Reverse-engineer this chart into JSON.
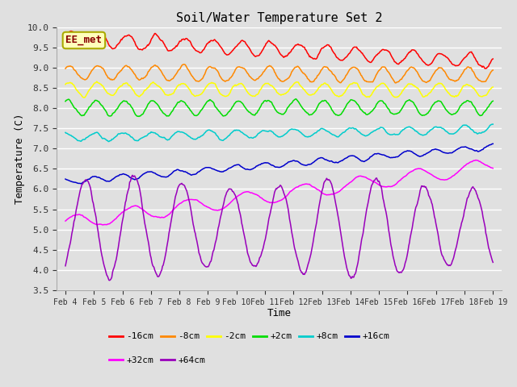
{
  "title": "Soil/Water Temperature Set 2",
  "xlabel": "Time",
  "ylabel": "Temperature (C)",
  "ylim": [
    3.5,
    10.0
  ],
  "bg_color": "#e0e0e0",
  "grid_color": "#ffffff",
  "annotation_text": "EE_met",
  "annotation_fg": "#880000",
  "annotation_bg": "#ffffbb",
  "annotation_border": "#aaaa00",
  "xtick_labels": [
    "Feb 4",
    "Feb 5",
    "Feb 6",
    "Feb 7",
    "Feb 8",
    "Feb 9",
    "Feb 10",
    "Feb 11",
    "Feb 12",
    "Feb 13",
    "Feb 14",
    "Feb 15",
    "Feb 16",
    "Feb 17",
    "Feb 18",
    "Feb 19"
  ],
  "ytick_values": [
    3.5,
    4.0,
    4.5,
    5.0,
    5.5,
    6.0,
    6.5,
    7.0,
    7.5,
    8.0,
    8.5,
    9.0,
    9.5,
    10.0
  ],
  "legend": [
    {
      "label": "-16cm",
      "color": "#ff0000"
    },
    {
      "label": "-8cm",
      "color": "#ff8800"
    },
    {
      "label": "-2cm",
      "color": "#ffff00"
    },
    {
      "label": "+2cm",
      "color": "#00dd00"
    },
    {
      "label": "+8cm",
      "color": "#00cccc"
    },
    {
      "label": "+16cm",
      "color": "#0000cc"
    },
    {
      "label": "+32cm",
      "color": "#ff00ff"
    },
    {
      "label": "+64cm",
      "color": "#9900bb"
    }
  ]
}
